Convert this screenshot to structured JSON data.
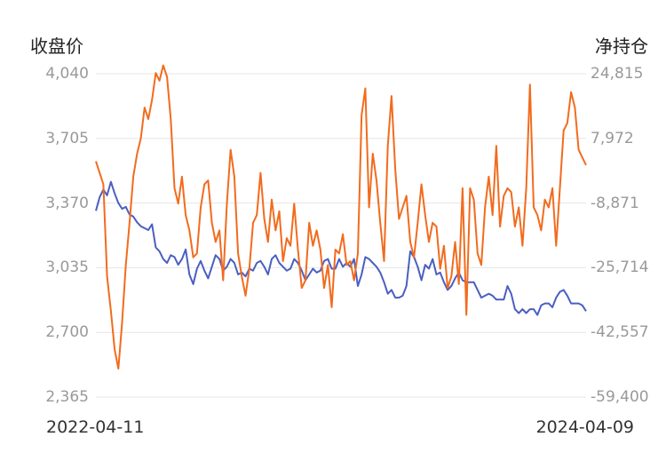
{
  "chart_data": {
    "type": "line",
    "left_axis_title": "收盘价",
    "right_axis_title": "净持仓",
    "left_ticks": [
      "4,040",
      "3,705",
      "3,370",
      "3,035",
      "2,700",
      "2,365"
    ],
    "right_ticks": [
      "24,815",
      "7,972",
      "-8,871",
      "-25,714",
      "-42,557",
      "-59,400"
    ],
    "left_range": [
      2365,
      4040
    ],
    "right_range": [
      -59400,
      24815
    ],
    "x_start": "2022-04-11",
    "x_end": "2024-04-09",
    "grid": true,
    "series": [
      {
        "axis": "left",
        "color": "#4a5fc1",
        "values": [
          3330,
          3400,
          3440,
          3410,
          3480,
          3420,
          3370,
          3340,
          3350,
          3310,
          3300,
          3270,
          3250,
          3240,
          3230,
          3260,
          3140,
          3120,
          3080,
          3060,
          3100,
          3090,
          3050,
          3080,
          3130,
          3000,
          2950,
          3030,
          3070,
          3020,
          2980,
          3040,
          3100,
          3080,
          3020,
          3040,
          3080,
          3060,
          3000,
          3010,
          2990,
          3030,
          3020,
          3060,
          3070,
          3040,
          3000,
          3080,
          3100,
          3060,
          3040,
          3020,
          3030,
          3080,
          3060,
          3020,
          2970,
          3000,
          3030,
          3010,
          3020,
          3070,
          3080,
          3030,
          3030,
          3080,
          3040,
          3060,
          3040,
          3080,
          2940,
          3000,
          3090,
          3080,
          3060,
          3040,
          3010,
          2960,
          2900,
          2920,
          2880,
          2880,
          2890,
          2940,
          3120,
          3090,
          3040,
          2970,
          3050,
          3030,
          3080,
          3000,
          3010,
          2960,
          2920,
          2940,
          2980,
          3010,
          2970,
          2960,
          2960,
          2960,
          2920,
          2880,
          2890,
          2900,
          2890,
          2870,
          2870,
          2870,
          2940,
          2900,
          2820,
          2800,
          2820,
          2800,
          2820,
          2820,
          2790,
          2840,
          2850,
          2850,
          2830,
          2880,
          2910,
          2920,
          2890,
          2850,
          2850,
          2850,
          2840,
          2810
        ]
      },
      {
        "axis": "right",
        "color": "#f26b1d",
        "values": [
          2000,
          -1000,
          -4000,
          -28000,
          -37000,
          -47000,
          -52000,
          -40000,
          -25000,
          -14000,
          -2000,
          4000,
          8000,
          16000,
          13000,
          18000,
          25000,
          23000,
          27000,
          24000,
          13000,
          -5000,
          -9000,
          -2000,
          -12000,
          -16000,
          -23000,
          -22000,
          -10000,
          -4000,
          -3000,
          -14000,
          -19000,
          -16000,
          -29000,
          -9000,
          5000,
          -2000,
          -22000,
          -28000,
          -33000,
          -26000,
          -14000,
          -12000,
          -1000,
          -13000,
          -19000,
          -8000,
          -16000,
          -11000,
          -24000,
          -18000,
          -20000,
          -9000,
          -21000,
          -31000,
          -29000,
          -14000,
          -20000,
          -16000,
          -21000,
          -31000,
          -25000,
          -36000,
          -21000,
          -22000,
          -17000,
          -25000,
          -24000,
          -29000,
          -22000,
          14000,
          21000,
          -10000,
          4000,
          -3000,
          -14000,
          -24000,
          6000,
          19000,
          0,
          -13000,
          -10000,
          -7000,
          -19000,
          -23000,
          -14000,
          -4000,
          -12000,
          -19000,
          -14000,
          -15000,
          -26000,
          -20000,
          -31000,
          -28000,
          -19000,
          -30000,
          -5000,
          -38000,
          -5000,
          -8000,
          -22000,
          -25000,
          -10000,
          -2000,
          -12000,
          6000,
          -15000,
          -7000,
          -5000,
          -6000,
          -15000,
          -10000,
          -20000,
          -5000,
          22000,
          -10000,
          -12000,
          -16000,
          -8000,
          -10000,
          -5000,
          -20000,
          -5000,
          10000,
          12000,
          20000,
          16000,
          5000,
          3000,
          1000
        ]
      }
    ]
  }
}
